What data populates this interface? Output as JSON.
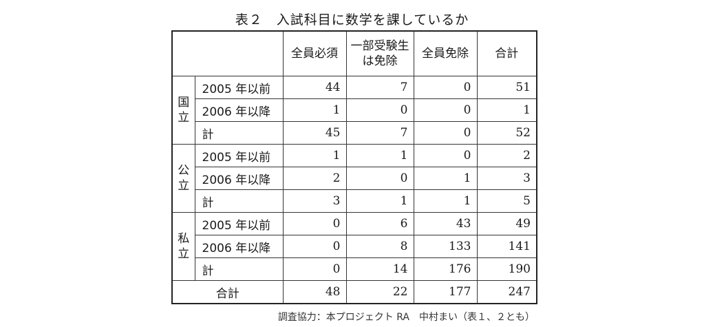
{
  "title": "表２　入試科目に数学を課しているか",
  "headers": [
    "全員必須",
    "一部受験生は免除",
    "全員免除",
    "合計"
  ],
  "header_lines": {
    "partial_line1": "一部受験生",
    "partial_line2": "は免除"
  },
  "groups": [
    {
      "name": "国立",
      "name_line1": "国",
      "name_line2": "立",
      "rows": [
        {
          "label": "2005 年以前",
          "values": [
            "44",
            "7",
            "0",
            "51"
          ]
        },
        {
          "label": "2006 年以降",
          "values": [
            "1",
            "0",
            "0",
            "1"
          ]
        },
        {
          "label": "計",
          "values": [
            "45",
            "7",
            "0",
            "52"
          ]
        }
      ]
    },
    {
      "name": "公立",
      "name_line1": "公",
      "name_line2": "立",
      "rows": [
        {
          "label": "2005 年以前",
          "values": [
            "1",
            "1",
            "0",
            "2"
          ]
        },
        {
          "label": "2006 年以降",
          "values": [
            "2",
            "0",
            "1",
            "3"
          ]
        },
        {
          "label": "計",
          "values": [
            "3",
            "1",
            "1",
            "5"
          ]
        }
      ]
    },
    {
      "name": "私立",
      "name_line1": "私",
      "name_line2": "立",
      "rows": [
        {
          "label": "2005 年以前",
          "values": [
            "0",
            "6",
            "43",
            "49"
          ]
        },
        {
          "label": "2006 年以降",
          "values": [
            "0",
            "8",
            "133",
            "141"
          ]
        },
        {
          "label": "計",
          "values": [
            "0",
            "14",
            "176",
            "190"
          ]
        }
      ]
    }
  ],
  "total": {
    "label": "合計",
    "values": [
      "48",
      "22",
      "177",
      "247"
    ]
  },
  "footnote": "調査協力：本プロジェクト RA　中村まい（表１、２とも）"
}
